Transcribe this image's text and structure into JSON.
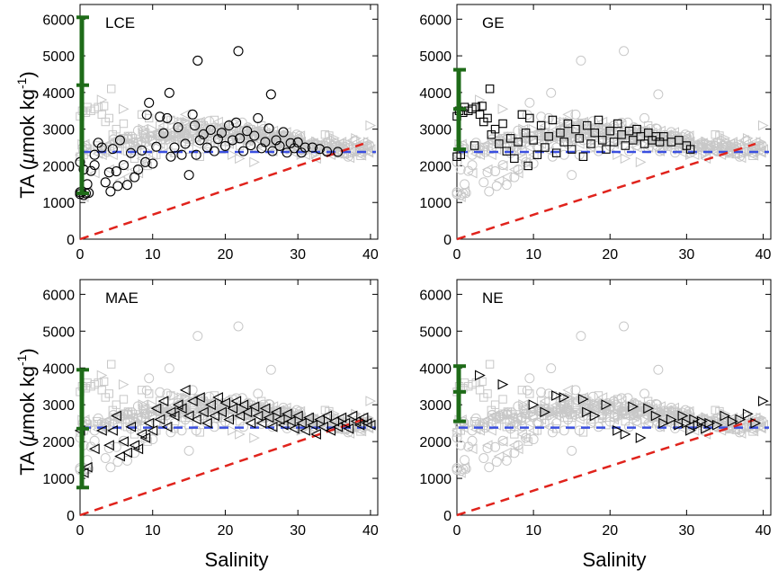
{
  "chart_data": {
    "type": "scatter",
    "layout": "2x2 small multiples",
    "xlabel": "Salinity",
    "ylabel": {
      "main": "TA (",
      "mu": "μ",
      "unit": "mok kg",
      "sup": "-1",
      "close": ")"
    },
    "xlim": [
      0,
      41
    ],
    "ylim": [
      0,
      6400
    ],
    "xticks": [
      "0",
      "10",
      "20",
      "30",
      "40"
    ],
    "yticks": [
      "0",
      "1000",
      "2000",
      "3000",
      "4000",
      "5000",
      "6000"
    ],
    "reference_lines": [
      {
        "name": "seawater-mean-TA",
        "style": "dashed",
        "color": "#3a4fe0",
        "y": 2380
      },
      {
        "name": "conservative-mixing-line",
        "style": "dashed",
        "color": "#e0231c",
        "from": [
          0,
          0
        ],
        "to": [
          39,
          2600
        ]
      }
    ],
    "colors": {
      "background_points": "#c8c8c8",
      "highlight_points": "#000000",
      "river_bar": "#1e6b18"
    },
    "panels": [
      {
        "label": "LCE",
        "marker": "circle",
        "river_endmember": {
          "min": 1250,
          "mean": 4200,
          "max": 6050
        },
        "points": [
          [
            0,
            1230
          ],
          [
            0,
            1280
          ],
          [
            0,
            2100
          ],
          [
            0.5,
            1200
          ],
          [
            0.5,
            1900
          ],
          [
            0.8,
            1250
          ],
          [
            1,
            1500
          ],
          [
            1.2,
            1260
          ],
          [
            1.5,
            1860
          ],
          [
            2,
            2020
          ],
          [
            2,
            2300
          ],
          [
            2.5,
            2630
          ],
          [
            3,
            2500
          ],
          [
            3.5,
            1550
          ],
          [
            4,
            1820
          ],
          [
            4.2,
            1300
          ],
          [
            4.5,
            2460
          ],
          [
            5,
            1850
          ],
          [
            5.2,
            1450
          ],
          [
            5.5,
            2700
          ],
          [
            6,
            2020
          ],
          [
            6.5,
            1480
          ],
          [
            7,
            2350
          ],
          [
            7.5,
            1690
          ],
          [
            8,
            1900
          ],
          [
            8.5,
            2420
          ],
          [
            9,
            2100
          ],
          [
            9.2,
            3390
          ],
          [
            9.5,
            3720
          ],
          [
            10,
            2060
          ],
          [
            10.5,
            2520
          ],
          [
            11,
            3340
          ],
          [
            11.5,
            2890
          ],
          [
            12,
            3300
          ],
          [
            12.3,
            3990
          ],
          [
            12.5,
            2250
          ],
          [
            13,
            2500
          ],
          [
            13.5,
            3050
          ],
          [
            14,
            2300
          ],
          [
            14.5,
            2600
          ],
          [
            15,
            1750
          ],
          [
            15.5,
            3400
          ],
          [
            15.8,
            3100
          ],
          [
            16,
            2300
          ],
          [
            16.2,
            4870
          ],
          [
            16.5,
            2700
          ],
          [
            17,
            2860
          ],
          [
            17.5,
            2500
          ],
          [
            18,
            2980
          ],
          [
            18.5,
            2400
          ],
          [
            19,
            2730
          ],
          [
            19.5,
            2900
          ],
          [
            20,
            2540
          ],
          [
            20.5,
            3100
          ],
          [
            21,
            2700
          ],
          [
            21.5,
            3180
          ],
          [
            21.8,
            5130
          ],
          [
            22,
            2750
          ],
          [
            22.5,
            2400
          ],
          [
            23,
            2950
          ],
          [
            23.5,
            2560
          ],
          [
            24,
            2820
          ],
          [
            24.5,
            3300
          ],
          [
            25,
            2480
          ],
          [
            25.5,
            2650
          ],
          [
            26,
            3020
          ],
          [
            26.3,
            3950
          ],
          [
            26.5,
            2400
          ],
          [
            27,
            2700
          ],
          [
            27.5,
            2540
          ],
          [
            28,
            2920
          ],
          [
            28.5,
            2360
          ],
          [
            29,
            2620
          ],
          [
            29.5,
            2480
          ],
          [
            30,
            2640
          ],
          [
            30.5,
            2360
          ],
          [
            31,
            2500
          ],
          [
            32,
            2500
          ],
          [
            33,
            2460
          ],
          [
            34,
            2390
          ],
          [
            35.5,
            2380
          ]
        ]
      },
      {
        "label": "GE",
        "marker": "square",
        "river_endmember": {
          "min": 2450,
          "mean": 3550,
          "max": 4620
        },
        "points": [
          [
            0,
            2250
          ],
          [
            0,
            3350
          ],
          [
            0.3,
            3500
          ],
          [
            0.5,
            2300
          ],
          [
            0.8,
            3450
          ],
          [
            1,
            3600
          ],
          [
            1.5,
            3500
          ],
          [
            2,
            3550
          ],
          [
            2.3,
            2550
          ],
          [
            2.5,
            3600
          ],
          [
            3,
            3400
          ],
          [
            3.3,
            3630
          ],
          [
            3.5,
            3200
          ],
          [
            4,
            3300
          ],
          [
            4.3,
            4100
          ],
          [
            4.5,
            2850
          ],
          [
            5,
            3000
          ],
          [
            5.5,
            2600
          ],
          [
            6,
            3150
          ],
          [
            6.5,
            2400
          ],
          [
            7,
            2750
          ],
          [
            7.5,
            2200
          ],
          [
            8,
            2650
          ],
          [
            8.5,
            3400
          ],
          [
            9,
            2900
          ],
          [
            9.3,
            2000
          ],
          [
            9.5,
            3300
          ],
          [
            10,
            2700
          ],
          [
            10.5,
            2300
          ],
          [
            11,
            3100
          ],
          [
            11.5,
            2500
          ],
          [
            12,
            2800
          ],
          [
            12.5,
            3250
          ],
          [
            13,
            2350
          ],
          [
            13.5,
            2900
          ],
          [
            14,
            2650
          ],
          [
            14.5,
            3150
          ],
          [
            15,
            2450
          ],
          [
            15.5,
            3000
          ],
          [
            16,
            2750
          ],
          [
            16.5,
            2250
          ],
          [
            17,
            3100
          ],
          [
            17.5,
            2600
          ],
          [
            18,
            2900
          ],
          [
            18.5,
            3250
          ],
          [
            19,
            2700
          ],
          [
            19.5,
            2450
          ],
          [
            20,
            2950
          ],
          [
            20.5,
            2650
          ],
          [
            21,
            3150
          ],
          [
            21.5,
            2850
          ],
          [
            22,
            2550
          ],
          [
            22.5,
            2950
          ],
          [
            23,
            2700
          ],
          [
            23.5,
            3000
          ],
          [
            24,
            2800
          ],
          [
            24.5,
            2600
          ],
          [
            25,
            2900
          ],
          [
            25.5,
            2700
          ],
          [
            26,
            2800
          ],
          [
            26.5,
            2650
          ],
          [
            27,
            2800
          ],
          [
            28,
            2650
          ],
          [
            29,
            2700
          ],
          [
            30,
            2550
          ],
          [
            30.5,
            2450
          ]
        ]
      },
      {
        "label": "MAE",
        "marker": "triangle-left",
        "river_endmember": {
          "min": 750,
          "mean": 2350,
          "max": 3950
        },
        "points": [
          [
            0,
            2300
          ],
          [
            0.5,
            1150
          ],
          [
            1,
            1300
          ],
          [
            2,
            1800
          ],
          [
            3,
            2300
          ],
          [
            4,
            1900
          ],
          [
            4.5,
            2300
          ],
          [
            5,
            2700
          ],
          [
            5.5,
            1600
          ],
          [
            6,
            2000
          ],
          [
            6.5,
            1700
          ],
          [
            7,
            2400
          ],
          [
            7.5,
            1900
          ],
          [
            8,
            1800
          ],
          [
            8.5,
            2200
          ],
          [
            9,
            2100
          ],
          [
            9.5,
            2500
          ],
          [
            10,
            2300
          ],
          [
            10.5,
            2900
          ],
          [
            11,
            2600
          ],
          [
            11.5,
            3100
          ],
          [
            12,
            2400
          ],
          [
            12.5,
            2800
          ],
          [
            13,
            2700
          ],
          [
            13.5,
            3000
          ],
          [
            14,
            2900
          ],
          [
            14.5,
            3400
          ],
          [
            15,
            2700
          ],
          [
            15.5,
            3100
          ],
          [
            16,
            2600
          ],
          [
            16.5,
            3200
          ],
          [
            17,
            2800
          ],
          [
            17.5,
            2500
          ],
          [
            18,
            3000
          ],
          [
            18.5,
            2700
          ],
          [
            19,
            3200
          ],
          [
            19.5,
            2800
          ],
          [
            20,
            3050
          ],
          [
            20.5,
            2600
          ],
          [
            21,
            2900
          ],
          [
            21.5,
            3100
          ],
          [
            22,
            2700
          ],
          [
            22.5,
            3000
          ],
          [
            23,
            2800
          ],
          [
            23.5,
            2500
          ],
          [
            24,
            2950
          ],
          [
            24.5,
            2700
          ],
          [
            25,
            2500
          ],
          [
            25.5,
            2900
          ],
          [
            26,
            2650
          ],
          [
            26.5,
            2400
          ],
          [
            27,
            2800
          ],
          [
            27.5,
            2600
          ],
          [
            28,
            2450
          ],
          [
            28.5,
            2750
          ],
          [
            29,
            2550
          ],
          [
            29.5,
            2350
          ],
          [
            30,
            2700
          ],
          [
            30.5,
            2500
          ],
          [
            31,
            2300
          ],
          [
            31.5,
            2650
          ],
          [
            32,
            2450
          ],
          [
            32.5,
            2200
          ],
          [
            33,
            2600
          ],
          [
            33.5,
            2400
          ],
          [
            34,
            2700
          ],
          [
            34.5,
            2300
          ],
          [
            35,
            2550
          ],
          [
            35.5,
            2400
          ],
          [
            36,
            2650
          ],
          [
            36.5,
            2500
          ],
          [
            37,
            2350
          ],
          [
            37.5,
            2700
          ],
          [
            38,
            2550
          ],
          [
            38.5,
            2450
          ],
          [
            39,
            2650
          ],
          [
            39.5,
            2500
          ],
          [
            40,
            2450
          ]
        ]
      },
      {
        "label": "NE",
        "marker": "triangle-right",
        "river_endmember": {
          "min": 2550,
          "mean": 3350,
          "max": 4050
        },
        "points": [
          [
            3,
            3800
          ],
          [
            6,
            3550
          ],
          [
            10,
            3000
          ],
          [
            11.5,
            2800
          ],
          [
            13,
            3250
          ],
          [
            14,
            3200
          ],
          [
            16.5,
            3150
          ],
          [
            17,
            2800
          ],
          [
            18,
            2700
          ],
          [
            19.5,
            3000
          ],
          [
            21,
            2300
          ],
          [
            22,
            2200
          ],
          [
            23,
            2950
          ],
          [
            24,
            2100
          ],
          [
            25,
            2900
          ],
          [
            26,
            2700
          ],
          [
            27,
            2500
          ],
          [
            28,
            2600
          ],
          [
            29,
            2450
          ],
          [
            29.5,
            2700
          ],
          [
            30,
            2500
          ],
          [
            30.5,
            2300
          ],
          [
            31,
            2600
          ],
          [
            31.5,
            2450
          ],
          [
            32,
            2550
          ],
          [
            32.5,
            2350
          ],
          [
            33,
            2500
          ],
          [
            34,
            2450
          ],
          [
            35,
            2700
          ],
          [
            36,
            2550
          ],
          [
            37,
            2600
          ],
          [
            38,
            2750
          ],
          [
            39,
            2500
          ],
          [
            40,
            3100
          ]
        ]
      }
    ]
  }
}
